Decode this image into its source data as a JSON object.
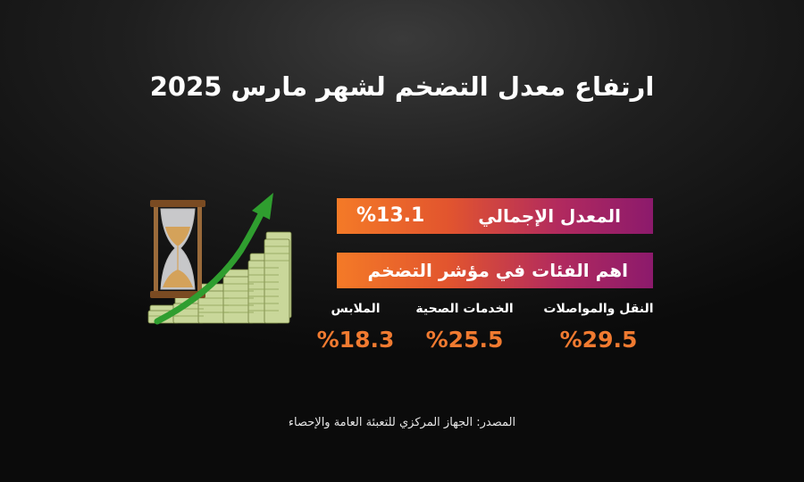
{
  "title": "ارتفاع معدل التضخم لشهر مارس 2025",
  "overall": {
    "label": "المعدل الإجمالي",
    "value": "%13.1"
  },
  "categories_heading": "اهم الفئات في مؤشر التضخم",
  "categories": [
    {
      "label": "النقل والمواصلات",
      "value": "%29.5"
    },
    {
      "label": "الخدمات الصحية",
      "value": "%25.5"
    },
    {
      "label": "الملابس",
      "value": "%18.3"
    }
  ],
  "source": "المصدر: الجهاز المركزي للتعبئة العامة والإحصاء",
  "colors": {
    "bar_start": "#f47a27",
    "bar_end": "#8c1a6c",
    "value_orange": "#f07a30",
    "arrow_green": "#2f9e2f"
  },
  "icons": [
    "hourglass-icon",
    "money-stack-icon",
    "up-arrow-icon"
  ]
}
